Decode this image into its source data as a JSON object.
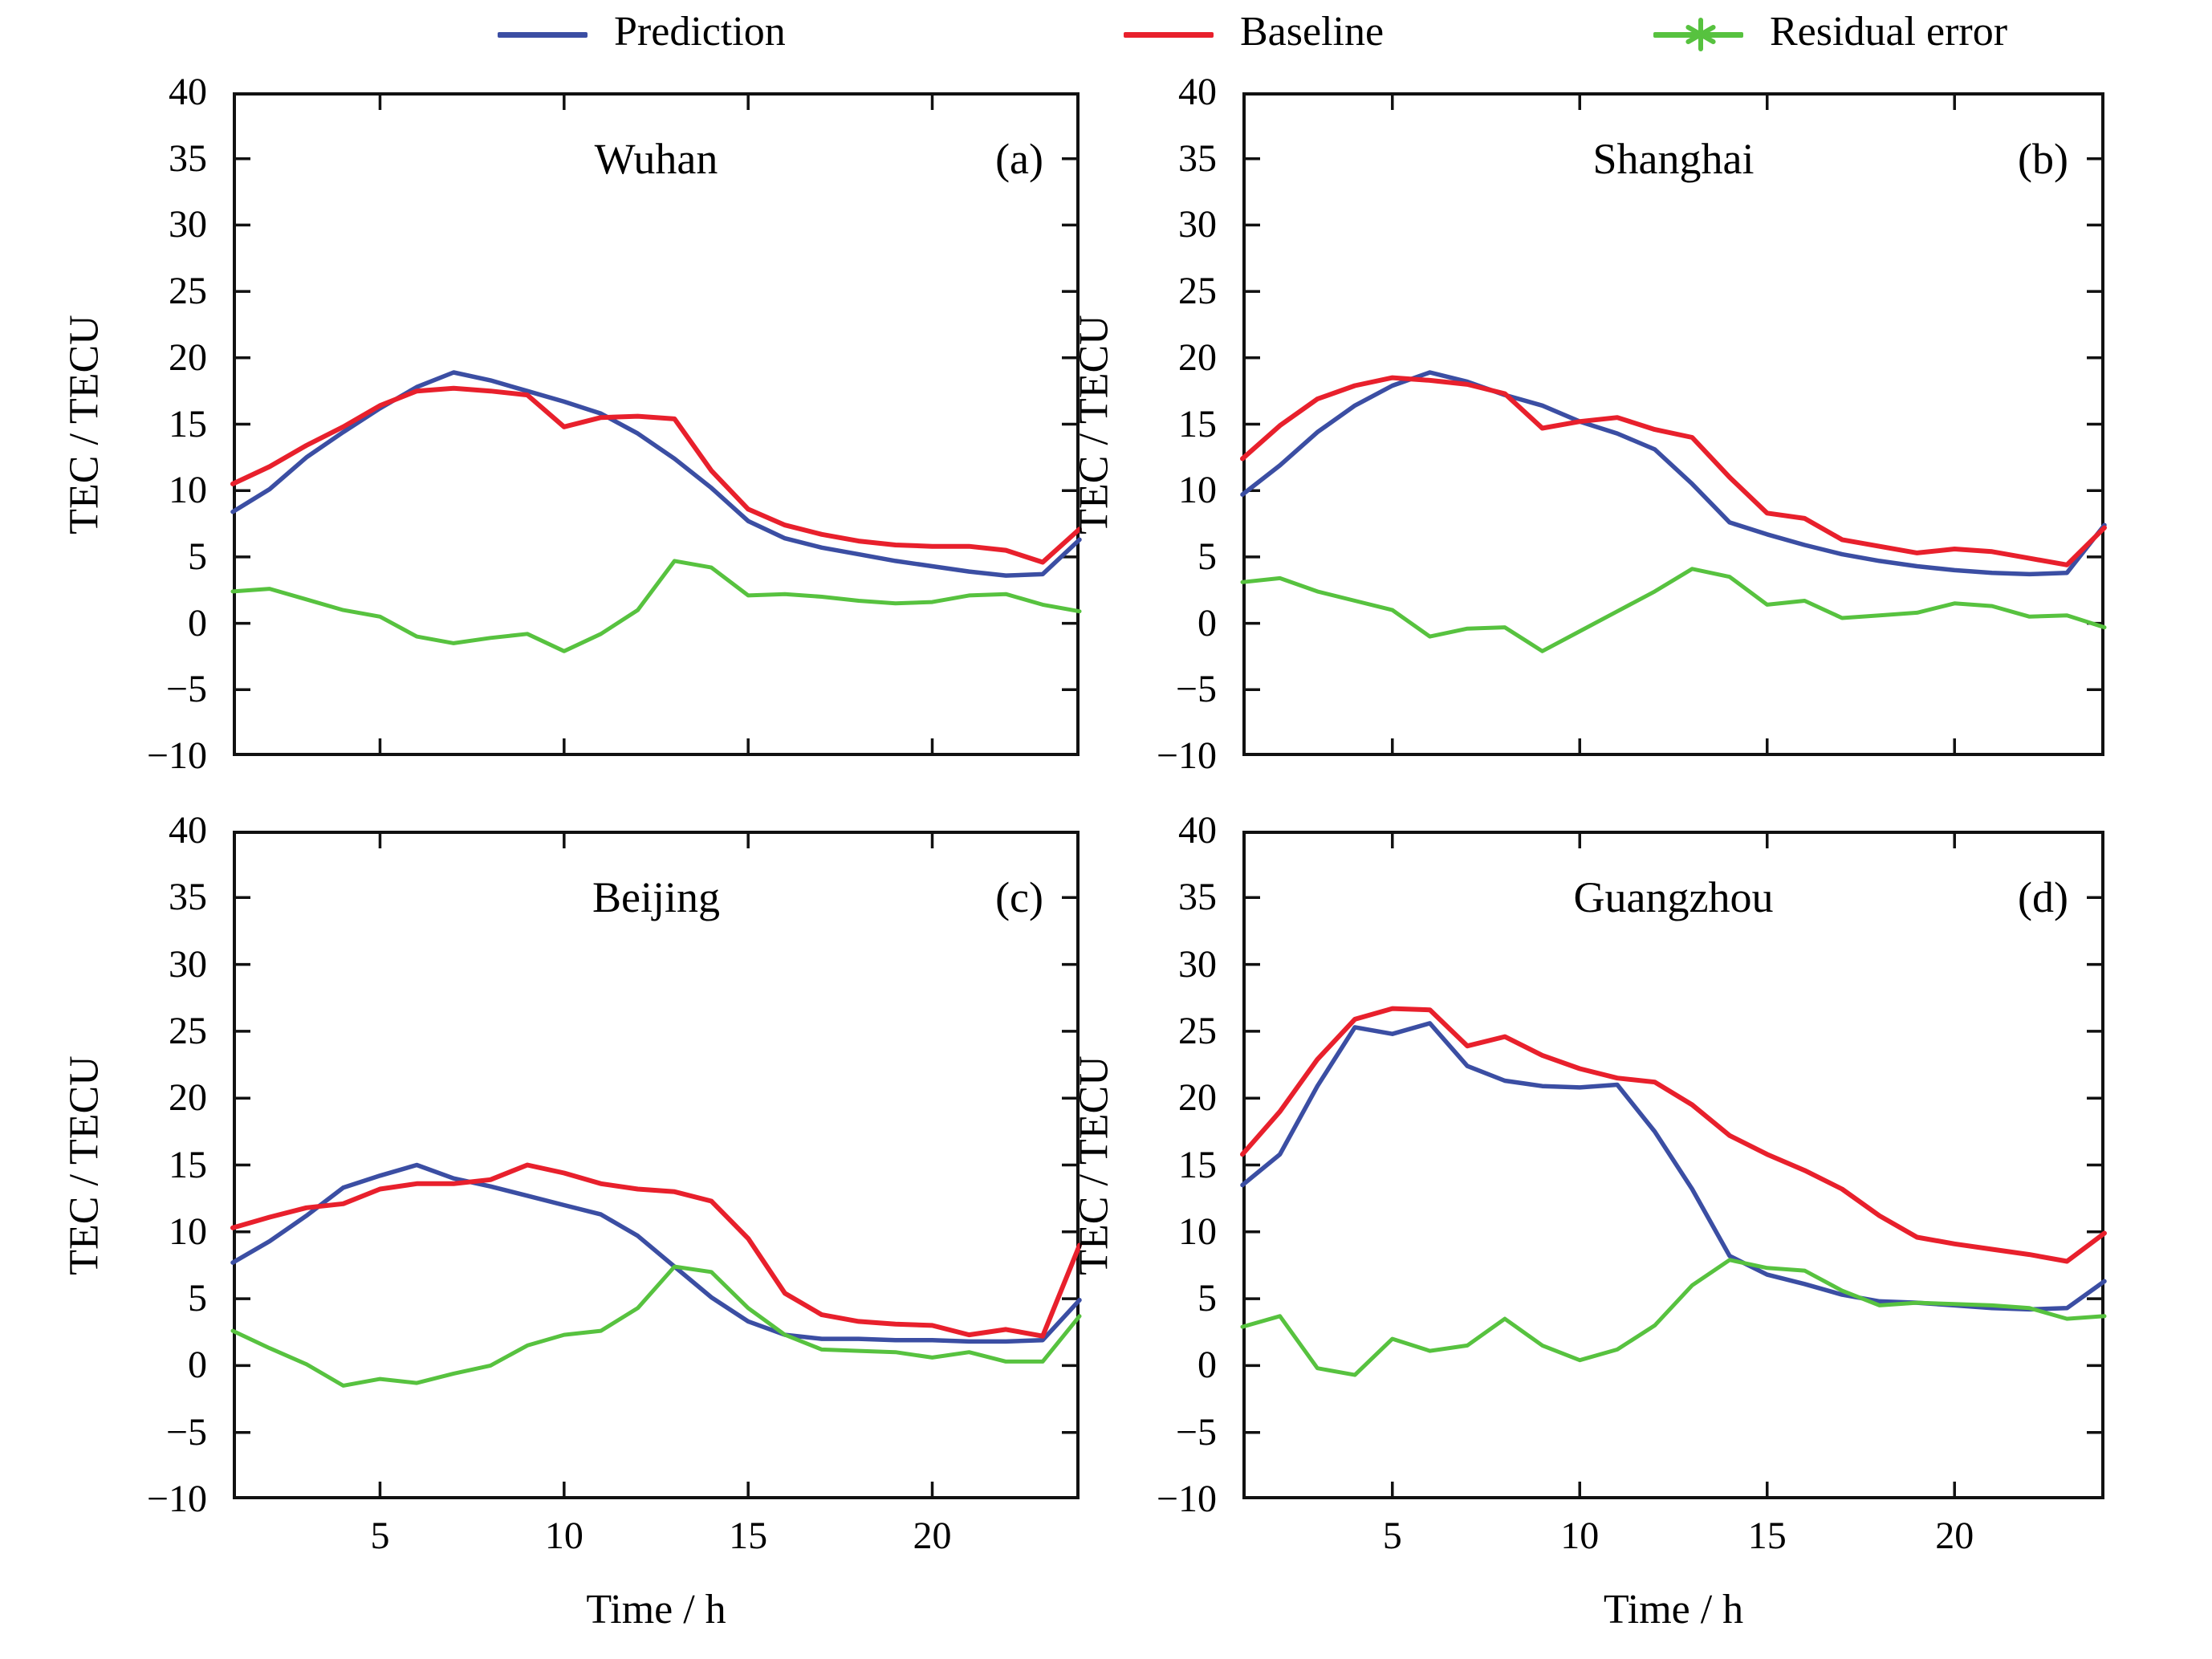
{
  "figure": {
    "ylabel": "TEC / TECU",
    "xlabel": "Time / h"
  },
  "legend": {
    "items": [
      {
        "label": "Prediction",
        "color": "#3b4ea3",
        "marker": "line"
      },
      {
        "label": "Baseline",
        "color": "#e8202c",
        "marker": "line"
      },
      {
        "label": "Residual error",
        "color": "#57c23f",
        "marker": "line-asterisk"
      }
    ]
  },
  "axes": {
    "ylim": [
      -10,
      40
    ],
    "xlim": [
      1,
      24
    ],
    "y_ticks": [
      40,
      35,
      30,
      25,
      20,
      15,
      10,
      5,
      0,
      -5,
      -10
    ],
    "x_ticks": [
      5,
      10,
      15,
      20
    ],
    "grid": false,
    "legend_position": "top"
  },
  "chart_data": [
    {
      "type": "line",
      "title": "Wuhan",
      "panel_label": "(a)",
      "xlabel": "",
      "ylabel": "TEC / TECU",
      "xlim": [
        1,
        24
      ],
      "ylim": [
        -10,
        40
      ],
      "x": [
        1,
        2,
        3,
        4,
        5,
        6,
        7,
        8,
        9,
        10,
        11,
        12,
        13,
        14,
        15,
        16,
        17,
        18,
        19,
        20,
        21,
        22,
        23,
        24
      ],
      "series": [
        {
          "name": "Prediction",
          "color": "#3b4ea3",
          "values": [
            8.4,
            10.1,
            12.5,
            14.4,
            16.2,
            17.8,
            18.9,
            18.3,
            17.5,
            16.7,
            15.8,
            14.3,
            12.4,
            10.2,
            7.7,
            6.4,
            5.7,
            5.2,
            4.7,
            4.3,
            3.9,
            3.6,
            3.7,
            6.3
          ]
        },
        {
          "name": "Baseline",
          "color": "#e8202c",
          "values": [
            10.5,
            11.8,
            13.4,
            14.8,
            16.4,
            17.5,
            17.7,
            17.5,
            17.2,
            14.8,
            15.5,
            15.6,
            15.4,
            11.5,
            8.6,
            7.4,
            6.7,
            6.2,
            5.9,
            5.8,
            5.8,
            5.5,
            4.6,
            7.1
          ]
        },
        {
          "name": "Residual error",
          "color": "#57c23f",
          "values": [
            2.4,
            2.6,
            1.8,
            1.0,
            0.5,
            -1.0,
            -1.5,
            -1.1,
            -0.8,
            -2.1,
            -0.8,
            1.0,
            4.7,
            4.2,
            2.1,
            2.2,
            2.0,
            1.7,
            1.5,
            1.6,
            2.1,
            2.2,
            1.4,
            0.9
          ]
        }
      ]
    },
    {
      "type": "line",
      "title": "Shanghai",
      "panel_label": "(b)",
      "xlabel": "",
      "ylabel": "TEC / TECU",
      "xlim": [
        1,
        24
      ],
      "ylim": [
        -10,
        40
      ],
      "x": [
        1,
        2,
        3,
        4,
        5,
        6,
        7,
        8,
        9,
        10,
        11,
        12,
        13,
        14,
        15,
        16,
        17,
        18,
        19,
        20,
        21,
        22,
        23,
        24
      ],
      "series": [
        {
          "name": "Prediction",
          "color": "#3b4ea3",
          "values": [
            9.7,
            11.9,
            14.4,
            16.4,
            17.9,
            18.9,
            18.2,
            17.2,
            16.4,
            15.2,
            14.3,
            13.1,
            10.5,
            7.6,
            6.7,
            5.9,
            5.2,
            4.7,
            4.3,
            4.0,
            3.8,
            3.7,
            3.8,
            7.4
          ]
        },
        {
          "name": "Baseline",
          "color": "#e8202c",
          "values": [
            12.4,
            14.9,
            16.9,
            17.9,
            18.5,
            18.3,
            18.0,
            17.3,
            14.7,
            15.2,
            15.5,
            14.6,
            14.0,
            11.0,
            8.3,
            7.9,
            6.3,
            5.8,
            5.3,
            5.6,
            5.4,
            4.9,
            4.4,
            7.2
          ]
        },
        {
          "name": "Residual error",
          "color": "#57c23f",
          "values": [
            3.1,
            3.4,
            2.4,
            1.7,
            1.0,
            -1.0,
            -0.4,
            -0.3,
            -2.1,
            -0.6,
            0.9,
            2.4,
            4.1,
            3.5,
            1.4,
            1.7,
            0.4,
            0.6,
            0.8,
            1.5,
            1.3,
            0.5,
            0.6,
            -0.3
          ]
        }
      ]
    },
    {
      "type": "line",
      "title": "Beijing",
      "panel_label": "(c)",
      "xlabel": "Time / h",
      "ylabel": "TEC / TECU",
      "xlim": [
        1,
        24
      ],
      "ylim": [
        -10,
        40
      ],
      "x": [
        1,
        2,
        3,
        4,
        5,
        6,
        7,
        8,
        9,
        10,
        11,
        12,
        13,
        14,
        15,
        16,
        17,
        18,
        19,
        20,
        21,
        22,
        23,
        24
      ],
      "series": [
        {
          "name": "Prediction",
          "color": "#3b4ea3",
          "values": [
            7.7,
            9.3,
            11.2,
            13.3,
            14.2,
            15.0,
            14.0,
            13.4,
            12.7,
            12.0,
            11.3,
            9.7,
            7.4,
            5.1,
            3.3,
            2.3,
            2.0,
            2.0,
            1.9,
            1.9,
            1.8,
            1.8,
            1.9,
            4.9
          ]
        },
        {
          "name": "Baseline",
          "color": "#e8202c",
          "values": [
            10.3,
            11.1,
            11.8,
            12.1,
            13.2,
            13.6,
            13.6,
            13.9,
            15.0,
            14.4,
            13.6,
            13.2,
            13.0,
            12.3,
            9.5,
            5.4,
            3.8,
            3.3,
            3.1,
            3.0,
            2.3,
            2.7,
            2.2,
            9.0
          ]
        },
        {
          "name": "Residual error",
          "color": "#57c23f",
          "values": [
            2.6,
            1.3,
            0.1,
            -1.5,
            -1.0,
            -1.3,
            -0.6,
            0.0,
            1.5,
            2.3,
            2.6,
            4.3,
            7.4,
            7.0,
            4.3,
            2.3,
            1.2,
            1.1,
            1.0,
            0.6,
            1.0,
            0.3,
            0.3,
            3.7
          ]
        }
      ]
    },
    {
      "type": "line",
      "title": "Guangzhou",
      "panel_label": "(d)",
      "xlabel": "Time / h",
      "ylabel": "TEC / TECU",
      "xlim": [
        1,
        24
      ],
      "ylim": [
        -10,
        40
      ],
      "x": [
        1,
        2,
        3,
        4,
        5,
        6,
        7,
        8,
        9,
        10,
        11,
        12,
        13,
        14,
        15,
        16,
        17,
        18,
        19,
        20,
        21,
        22,
        23,
        24
      ],
      "series": [
        {
          "name": "Prediction",
          "color": "#3b4ea3",
          "values": [
            13.5,
            15.8,
            20.9,
            25.3,
            24.8,
            25.6,
            22.4,
            21.3,
            20.9,
            20.8,
            21.0,
            17.5,
            13.2,
            8.2,
            6.8,
            6.1,
            5.3,
            4.8,
            4.7,
            4.5,
            4.3,
            4.2,
            4.3,
            6.3
          ]
        },
        {
          "name": "Baseline",
          "color": "#e8202c",
          "values": [
            15.8,
            19.0,
            22.9,
            25.9,
            26.7,
            26.6,
            23.9,
            24.6,
            23.2,
            22.2,
            21.5,
            21.2,
            19.5,
            17.2,
            15.8,
            14.6,
            13.2,
            11.2,
            9.6,
            9.1,
            8.7,
            8.3,
            7.8,
            9.9
          ]
        },
        {
          "name": "Residual error",
          "color": "#57c23f",
          "values": [
            2.9,
            3.7,
            -0.2,
            -0.7,
            2.0,
            1.1,
            1.5,
            3.5,
            1.5,
            0.4,
            1.2,
            3.0,
            6.0,
            7.9,
            7.3,
            7.1,
            5.6,
            4.5,
            4.7,
            4.6,
            4.5,
            4.3,
            3.5,
            3.7
          ]
        }
      ]
    }
  ]
}
